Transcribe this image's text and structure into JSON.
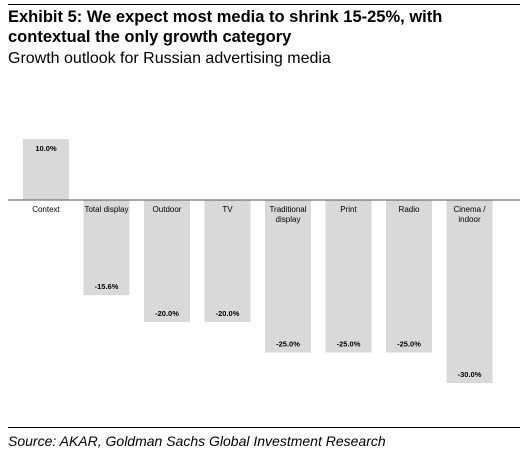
{
  "exhibit": {
    "title": "Exhibit 5: We expect most media to shrink 15-25%, with contextual the only growth category",
    "subtitle": "Growth outlook for Russian advertising media",
    "source": "Source: AKAR, Goldman Sachs Global Investment Research"
  },
  "chart_data": {
    "type": "bar",
    "categories": [
      "Context",
      "Total display",
      "Outdoor",
      "TV",
      "Traditional display",
      "Print",
      "Radio",
      "Cinema / indoor"
    ],
    "values": [
      10.0,
      -15.6,
      -20.0,
      -20.0,
      -25.0,
      -25.0,
      -25.0,
      -30.0
    ],
    "value_labels": [
      "10.0%",
      "-15.6%",
      "-20.0%",
      "-20.0%",
      "-25.0%",
      "-25.0%",
      "-25.0%",
      "-30.0%"
    ],
    "category_labels": [
      [
        "Context"
      ],
      [
        "Total display"
      ],
      [
        "Outdoor"
      ],
      [
        "TV"
      ],
      [
        "Traditional",
        "display"
      ],
      [
        "Print"
      ],
      [
        "Radio"
      ],
      [
        "Cinema /",
        "indoor"
      ]
    ],
    "bar_color": "#d9d9d9",
    "axis_color": "#555555",
    "ylim": [
      -30,
      10
    ],
    "grid": false,
    "legend": "none"
  }
}
